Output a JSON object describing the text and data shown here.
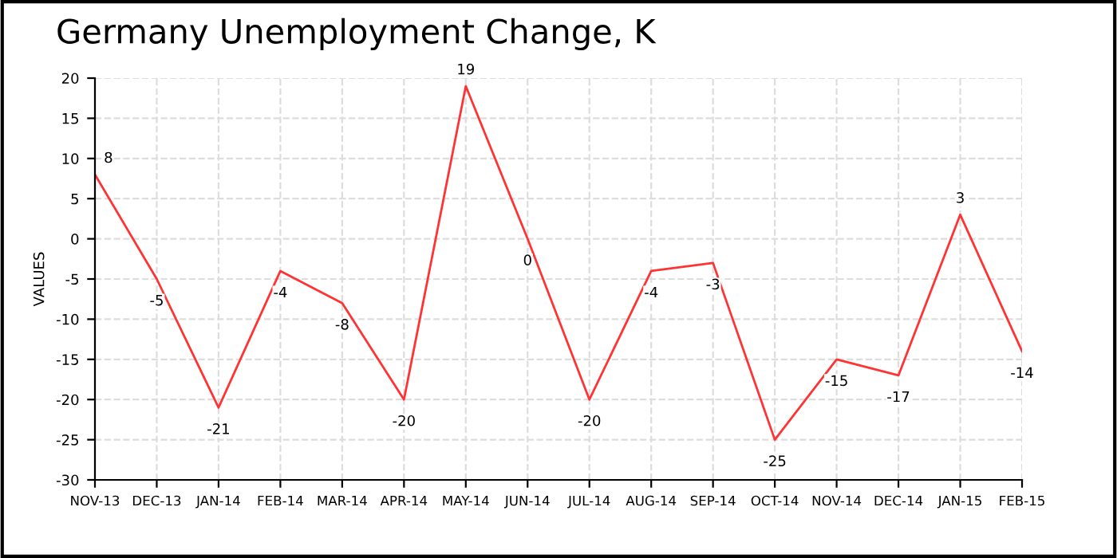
{
  "chart_data": {
    "type": "line",
    "title": "Germany Unemployment Change, K",
    "ylabel": "VALUES",
    "categories": [
      "NOV-13",
      "DEC-13",
      "JAN-14",
      "FEB-14",
      "MAR-14",
      "APR-14",
      "MAY-14",
      "JUN-14",
      "JUL-14",
      "AUG-14",
      "SEP-14",
      "OCT-14",
      "NOV-14",
      "DEC-14",
      "JAN-15",
      "FEB-15"
    ],
    "series": [
      {
        "color": "#ff3333",
        "values": [
          8,
          -5,
          -21,
          -4,
          -8,
          -20,
          19,
          0,
          -20,
          -4,
          -3,
          -25,
          -15,
          -17,
          3,
          -14
        ]
      }
    ],
    "ylim": [
      -30,
      20
    ],
    "yticks": [
      -30,
      -25,
      -20,
      -15,
      -10,
      -5,
      0,
      5,
      10,
      15,
      20
    ],
    "grid": true,
    "data_labels": true,
    "marker": "none",
    "line_style": "solid"
  }
}
